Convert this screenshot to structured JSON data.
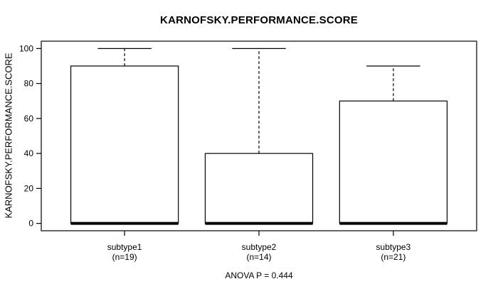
{
  "chart_data": {
    "type": "boxplot",
    "title": "KARNOFSKY.PERFORMANCE.SCORE",
    "ylabel": "KARNOFSKY.PERFORMANCE.SCORE",
    "annotation": "ANOVA P = 0.444",
    "yticks": [
      0,
      20,
      40,
      60,
      80,
      100
    ],
    "ylim": [
      -4.2,
      104.2
    ],
    "grid": false,
    "groups": [
      {
        "label": "subtype1",
        "sublabel": "(n=19)",
        "n": 19,
        "whisker_low": 0,
        "q1": 0,
        "median": 0,
        "q3": 90,
        "whisker_high": 100
      },
      {
        "label": "subtype2",
        "sublabel": "(n=14)",
        "n": 14,
        "whisker_low": 0,
        "q1": 0,
        "median": 0,
        "q3": 40,
        "whisker_high": 100
      },
      {
        "label": "subtype3",
        "sublabel": "(n=21)",
        "n": 21,
        "whisker_low": 0,
        "q1": 0,
        "median": 0,
        "q3": 70,
        "whisker_high": 90
      }
    ]
  },
  "colors": {
    "line": "#000000",
    "box_fill": "#ffffff",
    "background": "#ffffff"
  }
}
